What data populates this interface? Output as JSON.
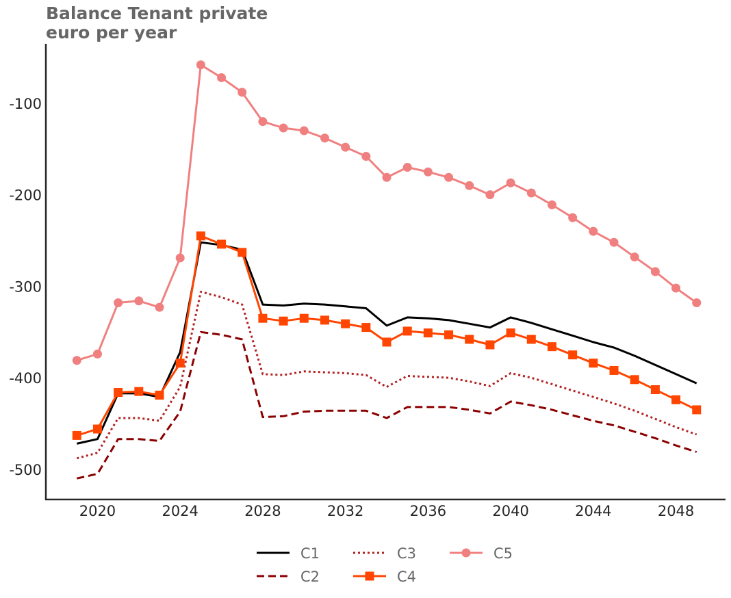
{
  "title_line1": "Balance Tenant private",
  "title_line2": "euro per year",
  "chart_data": {
    "type": "line",
    "title": "Balance Tenant private euro per year",
    "xlabel": "",
    "ylabel": "",
    "x": [
      2019,
      2020,
      2021,
      2022,
      2023,
      2024,
      2025,
      2026,
      2027,
      2028,
      2029,
      2030,
      2031,
      2032,
      2033,
      2034,
      2035,
      2036,
      2037,
      2038,
      2039,
      2040,
      2041,
      2042,
      2043,
      2044,
      2045,
      2046,
      2047,
      2048,
      2049
    ],
    "xlim": [
      2017.5,
      2050.4
    ],
    "ylim": [
      -533,
      -35
    ],
    "xticks": [
      2020,
      2024,
      2028,
      2032,
      2036,
      2040,
      2044,
      2048
    ],
    "yticks": [
      -500,
      -400,
      -300,
      -200,
      -100
    ],
    "grid": false,
    "legend_position": "bottom-center",
    "series": [
      {
        "name": "C1",
        "color": "#000000",
        "dash": "solid",
        "marker": "none",
        "values": [
          -472,
          -467,
          -417,
          -417,
          -421,
          -372,
          -252,
          -255,
          -260,
          -320,
          -321,
          -319,
          -320,
          -322,
          -324,
          -343,
          -334,
          -335,
          -337,
          -341,
          -345,
          -334,
          -340,
          -347,
          -354,
          -361,
          -367,
          -376,
          -386,
          -396,
          -406
        ]
      },
      {
        "name": "C2",
        "color": "#8b0000",
        "dash": "dashed",
        "marker": "none",
        "values": [
          -510,
          -505,
          -467,
          -467,
          -469,
          -437,
          -350,
          -353,
          -358,
          -443,
          -442,
          -437,
          -436,
          -436,
          -436,
          -444,
          -432,
          -432,
          -432,
          -435,
          -439,
          -426,
          -430,
          -435,
          -441,
          -447,
          -452,
          -459,
          -466,
          -474,
          -481
        ]
      },
      {
        "name": "C3",
        "color": "#b22222",
        "dash": "dotted",
        "marker": "none",
        "values": [
          -488,
          -482,
          -444,
          -444,
          -447,
          -410,
          -306,
          -312,
          -320,
          -396,
          -397,
          -393,
          -394,
          -395,
          -397,
          -410,
          -398,
          -399,
          -400,
          -404,
          -409,
          -395,
          -400,
          -407,
          -414,
          -421,
          -428,
          -436,
          -445,
          -454,
          -462
        ]
      },
      {
        "name": "C4",
        "color": "#ff4500",
        "dash": "solid",
        "marker": "square",
        "values": [
          -463,
          -456,
          -416,
          -415,
          -419,
          -384,
          -245,
          -254,
          -263,
          -335,
          -338,
          -335,
          -337,
          -341,
          -345,
          -361,
          -349,
          -351,
          -353,
          -358,
          -364,
          -351,
          -358,
          -366,
          -375,
          -384,
          -392,
          -402,
          -413,
          -424,
          -435
        ]
      },
      {
        "name": "C5",
        "color": "#f08080",
        "dash": "solid",
        "marker": "circle",
        "values": [
          -381,
          -374,
          -318,
          -316,
          -323,
          -269,
          -58,
          -72,
          -88,
          -120,
          -127,
          -130,
          -138,
          -148,
          -158,
          -181,
          -170,
          -175,
          -181,
          -190,
          -200,
          -187,
          -198,
          -211,
          -225,
          -240,
          -252,
          -268,
          -284,
          -302,
          -318
        ]
      }
    ]
  }
}
